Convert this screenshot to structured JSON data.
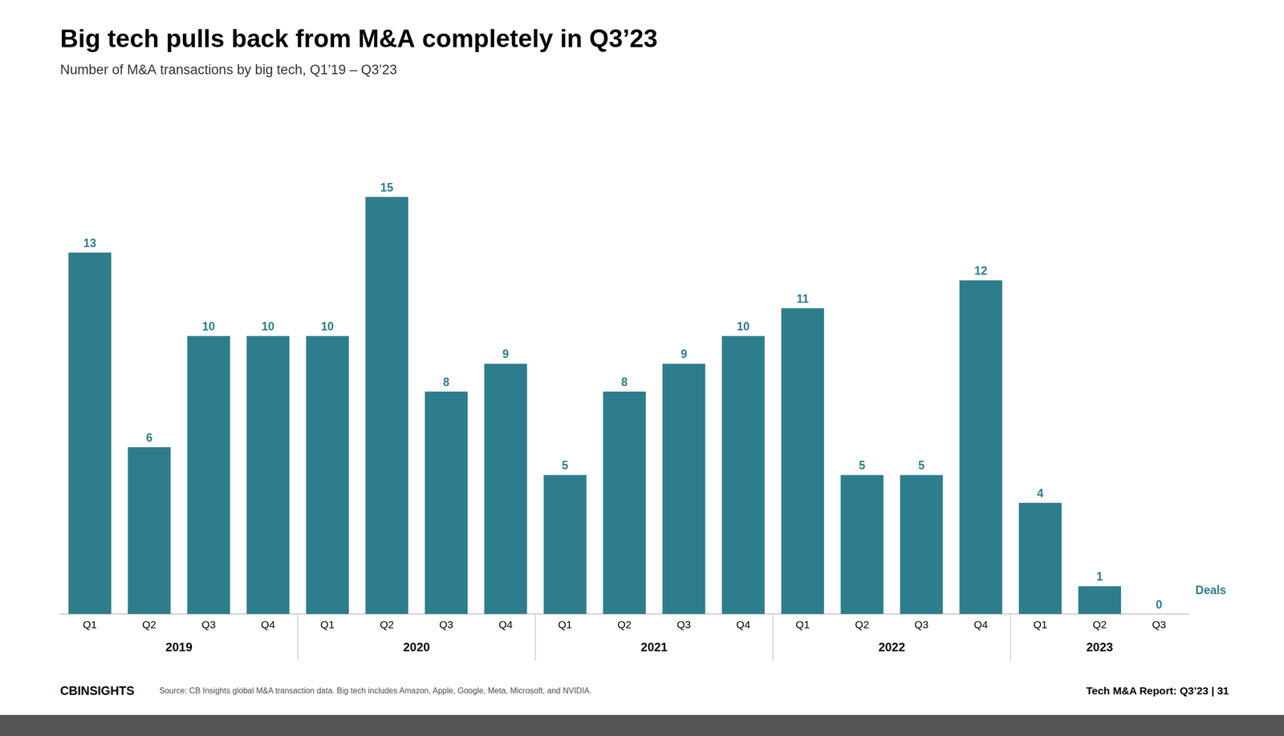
{
  "chart_data": {
    "type": "bar",
    "title": "Big tech pulls back from M&A completely in Q3’23",
    "subtitle": "Number of M&A transactions by big tech, Q1’19 – Q3’23",
    "categories": [
      "Q1",
      "Q2",
      "Q3",
      "Q4",
      "Q1",
      "Q2",
      "Q3",
      "Q4",
      "Q1",
      "Q2",
      "Q3",
      "Q4",
      "Q1",
      "Q2",
      "Q3",
      "Q4",
      "Q1",
      "Q2",
      "Q3"
    ],
    "year_labels": [
      "2019",
      "2020",
      "2021",
      "2022",
      "2023"
    ],
    "values": [
      13,
      6,
      10,
      10,
      10,
      15,
      8,
      9,
      5,
      8,
      9,
      10,
      11,
      5,
      5,
      12,
      4,
      1,
      0
    ],
    "color": "#2e7d8c",
    "ylim": [
      0,
      18
    ],
    "grid": false,
    "data_labels": true,
    "tick_labels": "x",
    "annotation": "Deals",
    "footer_left": "CBINSIGHTS",
    "source": "Source: CB Insights global M&A transaction data. Big tech includes Amazon, Apple, Google, Meta, Microsoft, and NVIDIA.",
    "footer_right": "Tech M&A Report: Q3’23  |  31"
  }
}
